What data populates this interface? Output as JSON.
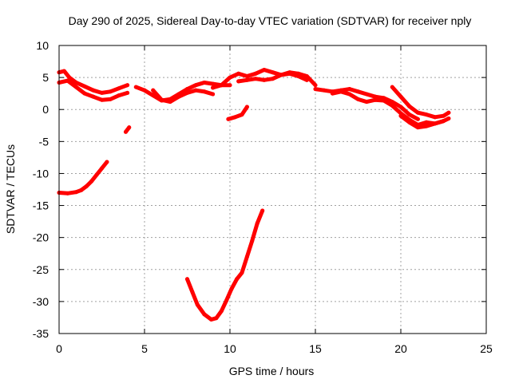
{
  "chart_data": {
    "type": "scatter",
    "title": "Day 290 of 2025, Sidereal Day-to-day VTEC variation (SDTVAR) for receiver nply",
    "xlabel": "GPS time / hours",
    "ylabel": "SDTVAR / TECUs",
    "xlim": [
      0,
      25
    ],
    "ylim": [
      -35,
      10
    ],
    "xticks": [
      0,
      5,
      10,
      15,
      20,
      25
    ],
    "yticks": [
      10,
      5,
      0,
      -5,
      -10,
      -15,
      -20,
      -25,
      -30,
      -35
    ],
    "grid": true,
    "marker_color": "#ff0000",
    "series": [
      {
        "name": "trace-main-a",
        "x": [
          0.0,
          0.3,
          0.6,
          1.0,
          1.5,
          2.0,
          2.5,
          3.0,
          3.5,
          4.0
        ],
        "y": [
          5.8,
          6.0,
          5.0,
          4.2,
          3.6,
          3.0,
          2.6,
          2.8,
          3.3,
          3.8
        ]
      },
      {
        "name": "trace-main-b",
        "x": [
          0.0,
          0.5,
          1.0,
          1.5,
          2.0,
          2.5,
          3.0,
          3.5,
          4.0
        ],
        "y": [
          4.2,
          4.5,
          3.5,
          2.5,
          2.0,
          1.5,
          1.6,
          2.2,
          2.6
        ]
      },
      {
        "name": "trace-main-c",
        "x": [
          4.5,
          5.0,
          5.5,
          6.0,
          6.5,
          7.0,
          7.5,
          8.0,
          8.5,
          9.0,
          9.5,
          10.0
        ],
        "y": [
          3.5,
          3.0,
          2.2,
          1.4,
          1.6,
          2.4,
          3.2,
          3.8,
          4.2,
          4.0,
          3.8,
          3.8
        ]
      },
      {
        "name": "trace-main-d",
        "x": [
          5.5,
          6.0,
          6.5,
          7.0,
          7.5,
          8.0,
          8.5,
          9.0
        ],
        "y": [
          3.0,
          1.5,
          1.2,
          2.0,
          2.6,
          3.0,
          2.8,
          2.4
        ]
      },
      {
        "name": "trace-main-e",
        "x": [
          9.0,
          9.5,
          10.0,
          10.5,
          11.0,
          11.5,
          12.0,
          12.5,
          13.0,
          13.5,
          14.0,
          14.5
        ],
        "y": [
          3.4,
          3.8,
          5.0,
          5.6,
          5.2,
          5.6,
          6.2,
          5.8,
          5.4,
          5.6,
          5.2,
          4.6
        ]
      },
      {
        "name": "trace-main-f",
        "x": [
          10.5,
          11.0,
          11.5,
          12.0,
          12.5,
          13.0,
          13.5,
          14.0,
          14.5,
          15.0
        ],
        "y": [
          4.4,
          4.6,
          4.8,
          4.6,
          4.8,
          5.4,
          5.8,
          5.6,
          5.2,
          3.8
        ]
      },
      {
        "name": "trace-main-g",
        "x": [
          15.0,
          15.5,
          16.0,
          16.5,
          17.0,
          17.5,
          18.0,
          18.5,
          19.0,
          19.5,
          20.0,
          20.5,
          21.0
        ],
        "y": [
          3.2,
          3.0,
          2.8,
          3.0,
          3.2,
          2.8,
          2.4,
          2.0,
          1.8,
          1.2,
          0.4,
          -0.8,
          -1.5
        ]
      },
      {
        "name": "trace-main-h",
        "x": [
          16.0,
          16.5,
          17.0,
          17.5,
          18.0,
          18.5,
          19.0,
          19.5,
          20.0,
          20.5,
          21.0,
          21.5,
          22.0,
          22.5
        ],
        "y": [
          2.5,
          2.8,
          2.4,
          1.6,
          1.2,
          1.5,
          1.4,
          0.6,
          -0.6,
          -1.6,
          -2.4,
          -2.0,
          -2.2,
          -1.8
        ]
      },
      {
        "name": "trace-main-i",
        "x": [
          19.5,
          20.0,
          20.5,
          21.0,
          21.5,
          22.0,
          22.5,
          22.8
        ],
        "y": [
          3.5,
          2.0,
          0.5,
          -0.5,
          -0.8,
          -1.2,
          -1.0,
          -0.5
        ]
      },
      {
        "name": "trace-main-j",
        "x": [
          20.0,
          20.5,
          21.0,
          21.5,
          22.0,
          22.5,
          22.8
        ],
        "y": [
          -1.0,
          -2.0,
          -2.8,
          -2.6,
          -2.2,
          -1.8,
          -1.4
        ]
      },
      {
        "name": "trace-small-a",
        "x": [
          3.9,
          4.1
        ],
        "y": [
          -3.5,
          -2.8
        ]
      },
      {
        "name": "trace-small-b",
        "x": [
          9.9,
          10.3,
          10.7,
          11.0
        ],
        "y": [
          -1.5,
          -1.2,
          -0.8,
          0.4
        ]
      },
      {
        "name": "trace-low-left",
        "x": [
          0.0,
          0.5,
          1.0,
          1.3,
          1.6,
          1.9,
          2.2,
          2.5,
          2.8
        ],
        "y": [
          -13.0,
          -13.1,
          -12.9,
          -12.6,
          -12.0,
          -11.2,
          -10.2,
          -9.2,
          -8.2
        ]
      },
      {
        "name": "trace-valley",
        "x": [
          7.5,
          7.8,
          8.1,
          8.5,
          8.9,
          9.2,
          9.5,
          9.8,
          10.1,
          10.4,
          10.7,
          11.0,
          11.3,
          11.6,
          11.9
        ],
        "y": [
          -26.5,
          -28.5,
          -30.5,
          -32.0,
          -32.8,
          -32.6,
          -31.5,
          -29.8,
          -28.0,
          -26.5,
          -25.5,
          -23.0,
          -20.5,
          -17.8,
          -15.8
        ]
      }
    ]
  }
}
